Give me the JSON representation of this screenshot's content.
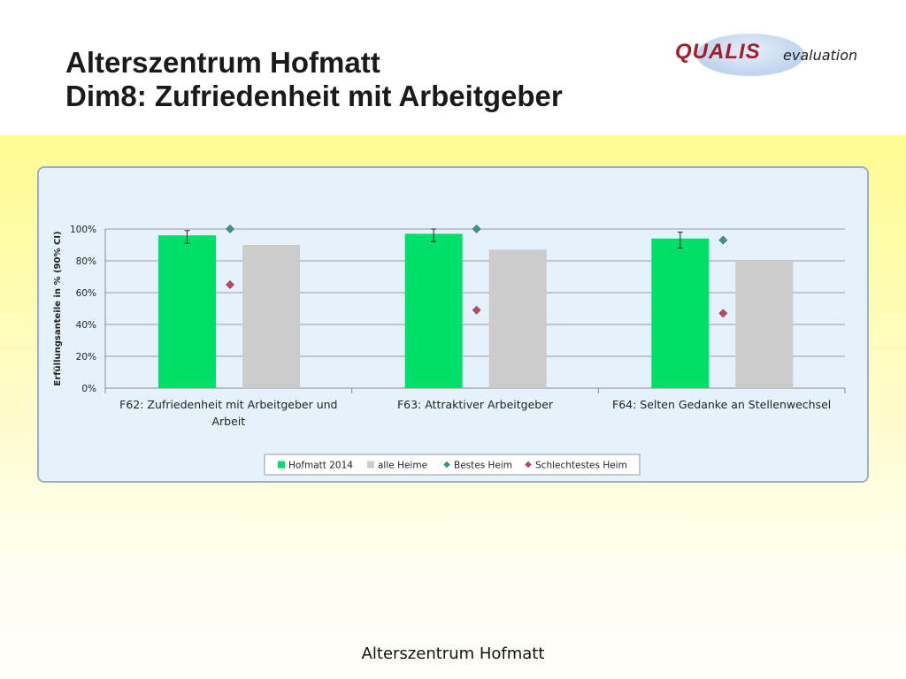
{
  "header": {
    "title_line1": "Alterszentrum Hofmatt",
    "title_line2": "Dim8: Zufriedenheit mit Arbeitgeber"
  },
  "logo": {
    "brand": "QUALIS",
    "suffix": "evaluation",
    "brand_color": "#a11d2a"
  },
  "footer": {
    "text": "Alterszentrum Hofmatt"
  },
  "chart_data": {
    "type": "bar",
    "ylabel": "Erfüllungsanteile in % (90% CI)",
    "ylim": [
      0,
      100
    ],
    "yticks": [
      "0%",
      "20%",
      "40%",
      "60%",
      "80%",
      "100%"
    ],
    "categories": [
      [
        "F62: Zufriedenheit mit Arbeitgeber und",
        "Arbeit"
      ],
      [
        "F63: Attraktiver Arbeitgeber"
      ],
      [
        "F64: Selten Gedanke an Stellenwechsel"
      ]
    ],
    "series": [
      {
        "name": "Hofmatt 2014",
        "kind": "bar",
        "color": "#00e068",
        "values": [
          96,
          97,
          94
        ],
        "ci_low": [
          91,
          92,
          88
        ],
        "ci_high": [
          99,
          100,
          98
        ]
      },
      {
        "name": "alle Heime",
        "kind": "bar",
        "color": "#cccccc",
        "values": [
          90,
          87,
          80
        ]
      },
      {
        "name": "Bestes Heim",
        "kind": "marker",
        "color": "#2e9e8a",
        "values": [
          100,
          100,
          93
        ]
      },
      {
        "name": "Schlechtestes Heim",
        "kind": "marker",
        "color": "#d0405a",
        "values": [
          65,
          49,
          47
        ]
      }
    ],
    "grid": true,
    "legend": "bottom"
  }
}
